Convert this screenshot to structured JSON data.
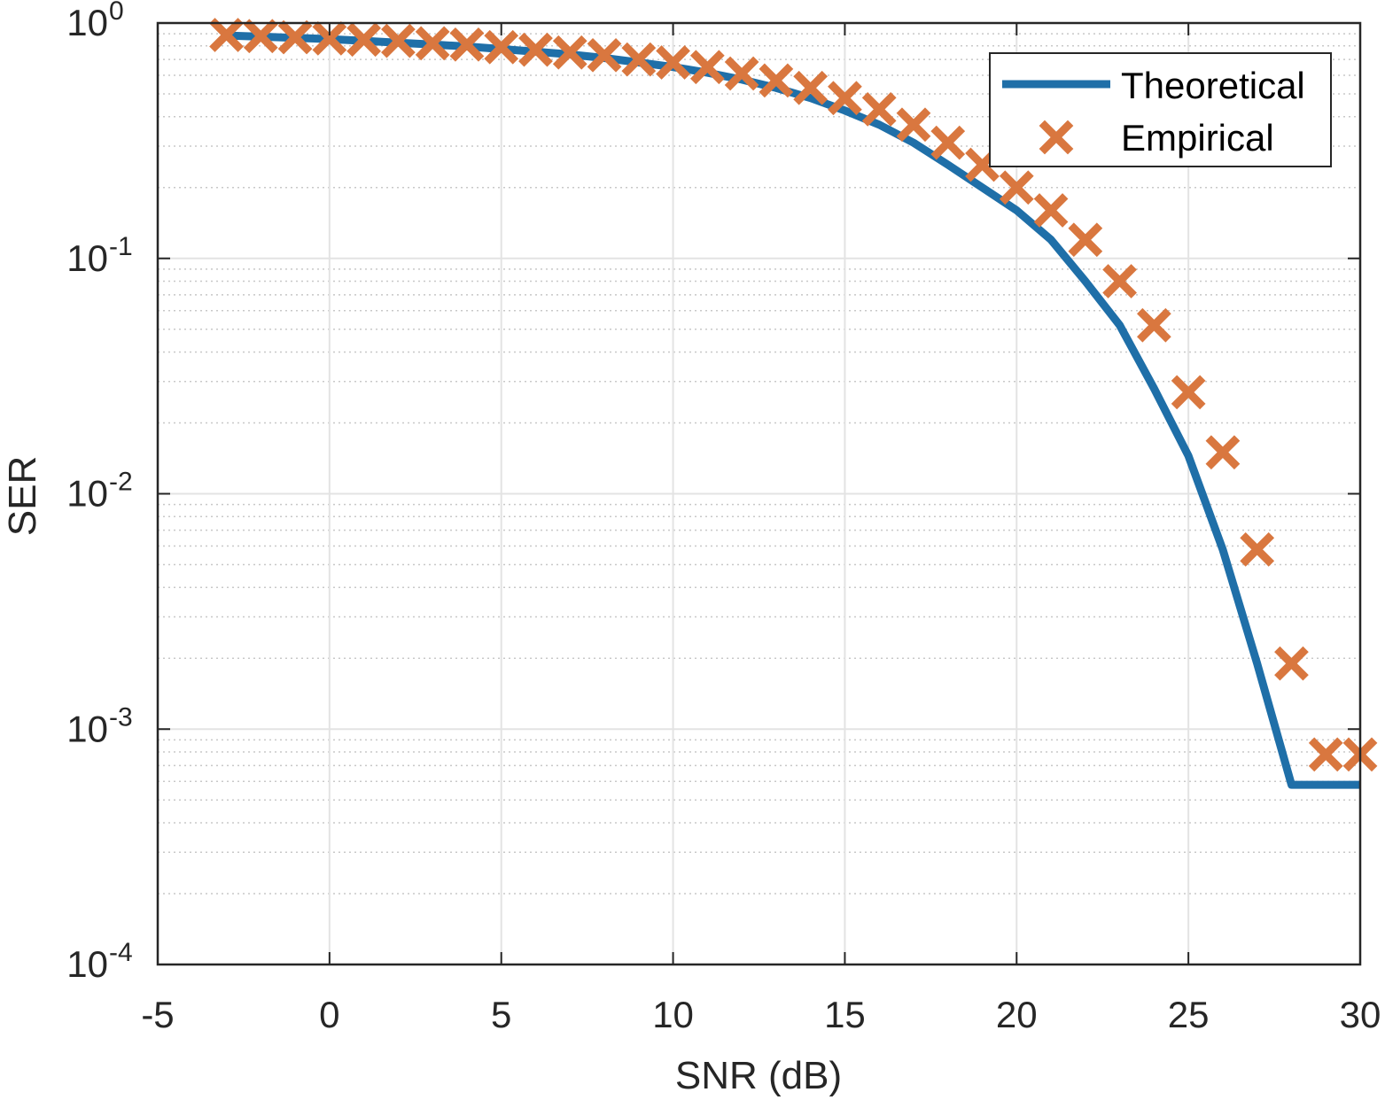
{
  "chart_data": {
    "type": "line",
    "xlabel": "SNR (dB)",
    "ylabel": "SER",
    "xlim": [
      -5,
      30
    ],
    "ylim": [
      0.0001,
      1
    ],
    "yscale": "log",
    "grid": true,
    "minor_grid": true,
    "legend_position": "top-right",
    "xticks": [
      -5,
      0,
      5,
      10,
      15,
      20,
      25,
      30
    ],
    "xtick_labels": [
      "-5",
      "0",
      "5",
      "10",
      "15",
      "20",
      "25",
      "30"
    ],
    "yticks": [
      {
        "value": 1,
        "base": "10",
        "exp": "0"
      },
      {
        "value": 0.1,
        "base": "10",
        "exp": "-1"
      },
      {
        "value": 0.01,
        "base": "10",
        "exp": "-2"
      },
      {
        "value": 0.001,
        "base": "10",
        "exp": "-3"
      },
      {
        "value": 0.0001,
        "base": "10",
        "exp": "-4"
      }
    ],
    "series": [
      {
        "name": "Theoretical",
        "kind": "line",
        "color": "#1f6fa8",
        "x": [
          -3,
          -2,
          -1,
          0,
          1,
          2,
          3,
          4,
          5,
          6,
          7,
          8,
          9,
          10,
          11,
          12,
          13,
          14,
          15,
          16,
          17,
          18,
          19,
          20,
          21,
          22,
          23,
          24,
          25,
          26,
          27,
          28,
          29,
          30
        ],
        "y": [
          0.885,
          0.875,
          0.865,
          0.855,
          0.84,
          0.825,
          0.81,
          0.795,
          0.775,
          0.755,
          0.735,
          0.71,
          0.68,
          0.65,
          0.615,
          0.575,
          0.53,
          0.48,
          0.425,
          0.37,
          0.31,
          0.25,
          0.2,
          0.16,
          0.12,
          0.08,
          0.052,
          0.028,
          0.0145,
          0.0058,
          0.0019,
          0.00058,
          0.00058,
          0.00058
        ]
      },
      {
        "name": "Empirical",
        "kind": "scatter",
        "marker": "x",
        "color": "#d9773f",
        "x": [
          -3,
          -2,
          -1,
          0,
          1,
          2,
          3,
          4,
          5,
          6,
          7,
          8,
          9,
          10,
          11,
          12,
          13,
          14,
          15,
          16,
          17,
          18,
          19,
          20,
          21,
          22,
          23,
          24,
          25,
          26,
          27,
          28,
          29,
          30
        ],
        "y": [
          0.89,
          0.88,
          0.87,
          0.86,
          0.85,
          0.84,
          0.82,
          0.81,
          0.79,
          0.77,
          0.75,
          0.73,
          0.7,
          0.68,
          0.65,
          0.61,
          0.57,
          0.53,
          0.48,
          0.43,
          0.37,
          0.31,
          0.25,
          0.2,
          0.16,
          0.12,
          0.08,
          0.052,
          0.027,
          0.015,
          0.0058,
          0.0019,
          0.00078,
          0.00078
        ]
      }
    ]
  }
}
